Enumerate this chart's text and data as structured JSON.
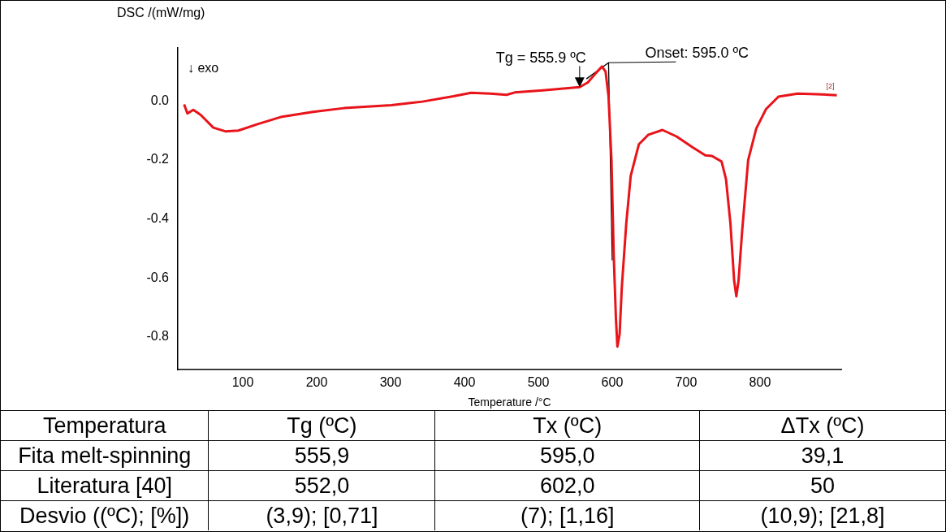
{
  "chart_data": {
    "type": "line",
    "xlabel": "Temperature /°C",
    "ylabel": "DSC /(mW/mg)",
    "xlim": [
      12,
      910
    ],
    "ylim": [
      -0.91,
      0.18
    ],
    "xticks": [
      100,
      200,
      300,
      400,
      500,
      600,
      700,
      800
    ],
    "yticks": [
      {
        "value": 0,
        "label": "0.0"
      },
      -0.2,
      -0.4,
      -0.6,
      -0.8
    ],
    "grid": false,
    "legend": false,
    "marker": "none",
    "line_style": "solid",
    "series": [
      {
        "color": "#e8141a",
        "x": [
          20.5,
          25,
          33,
          43,
          60,
          77,
          94,
          119,
          153,
          195,
          237,
          301,
          343,
          385,
          409,
          435,
          457,
          468,
          506,
          556,
          567,
          578,
          586,
          591,
          595,
          599,
          602,
          605,
          607,
          610,
          613,
          619,
          625,
          636,
          649,
          668,
          687,
          709,
          726,
          735,
          748,
          754,
          760,
          765,
          768,
          771,
          776,
          784,
          795,
          808,
          825,
          851,
          877,
          904
        ],
        "values": [
          -0.011,
          -0.042,
          -0.03,
          -0.047,
          -0.09,
          -0.103,
          -0.1,
          -0.079,
          -0.053,
          -0.037,
          -0.024,
          -0.014,
          -0.002,
          0.016,
          0.028,
          0.025,
          0.021,
          0.029,
          0.036,
          0.047,
          0.063,
          0.095,
          0.117,
          0.1,
          0.015,
          -0.2,
          -0.52,
          -0.737,
          -0.832,
          -0.79,
          -0.63,
          -0.415,
          -0.254,
          -0.147,
          -0.114,
          -0.098,
          -0.12,
          -0.157,
          -0.184,
          -0.186,
          -0.205,
          -0.265,
          -0.415,
          -0.608,
          -0.662,
          -0.608,
          -0.436,
          -0.2,
          -0.093,
          -0.028,
          0.015,
          0.025,
          0.023,
          0.02
        ]
      },
      {
        "type": "line",
        "color": "#000000",
        "x": [
          565,
          595,
          600
        ],
        "values": [
          0.075,
          0.13,
          -0.54
        ]
      }
    ],
    "annotations": [
      {
        "text": "Tg = 555.9 ºC",
        "x": 555.9,
        "y": 0.047
      },
      {
        "text": "Onset: 595.0 ºC",
        "x": 595,
        "y": 0.13
      },
      {
        "text": "[2]",
        "x": 904,
        "y": 0.02
      },
      "↓ exo",
      "Temperatura",
      "Tg (ºC)",
      "Tx (ºC)",
      "ΔTx (ºC)",
      "Fita melt-spinning",
      "555,9",
      "595,0",
      "39,1",
      "Literatura [40]",
      "552,0",
      "602,0",
      "50",
      "Desvio ((ºC); [%])",
      "(3,9); [0,71]",
      "(7); [1,16]",
      "(10,9); [21,8]"
    ]
  }
}
